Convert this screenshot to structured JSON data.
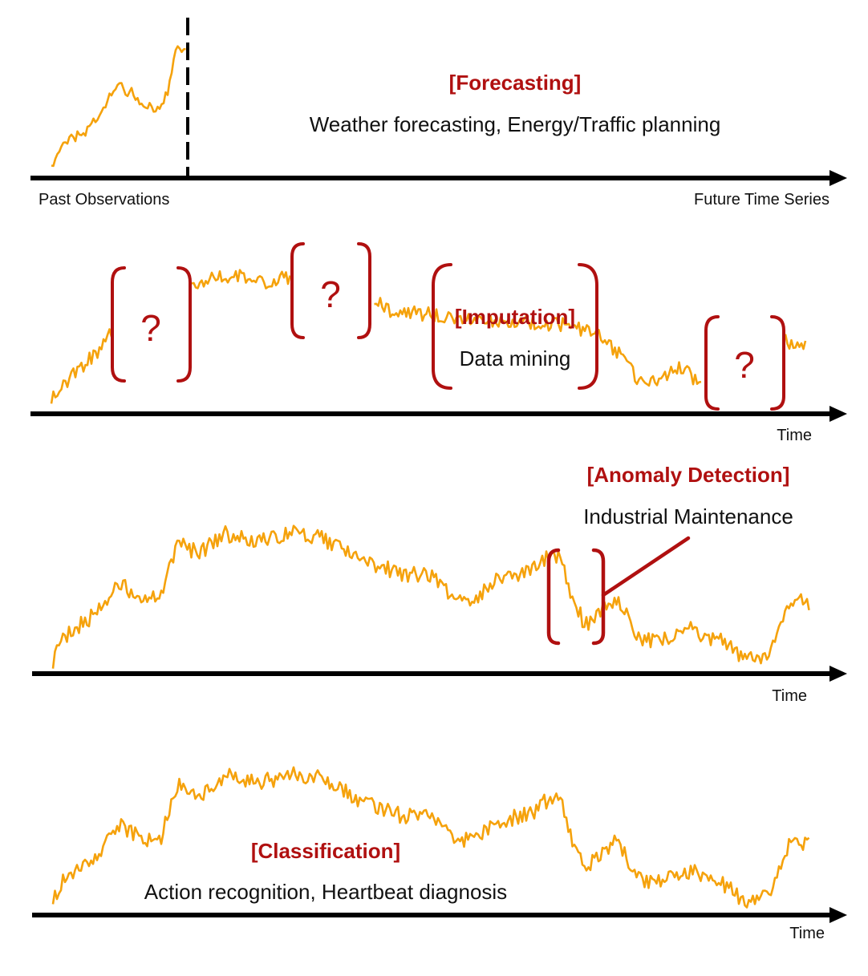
{
  "colors": {
    "series": "#f5a20c",
    "accent": "#b01010",
    "axis": "#000000"
  },
  "forecasting": {
    "title": "[Forecasting]",
    "description": "Weather forecasting, Energy/Traffic planning",
    "left_axis_label": "Past Observations",
    "right_axis_label": "Future Time Series"
  },
  "imputation": {
    "title": "[Imputation]",
    "description": "Data mining",
    "axis_label": "Time",
    "missing_marks": [
      "?",
      "?",
      "?"
    ]
  },
  "anomaly": {
    "title": "[Anomaly Detection]",
    "description": "Industrial Maintenance",
    "axis_label": "Time"
  },
  "classification": {
    "title": "[Classification]",
    "description": "Action recognition, Heartbeat diagnosis",
    "axis_label": "Time"
  }
}
